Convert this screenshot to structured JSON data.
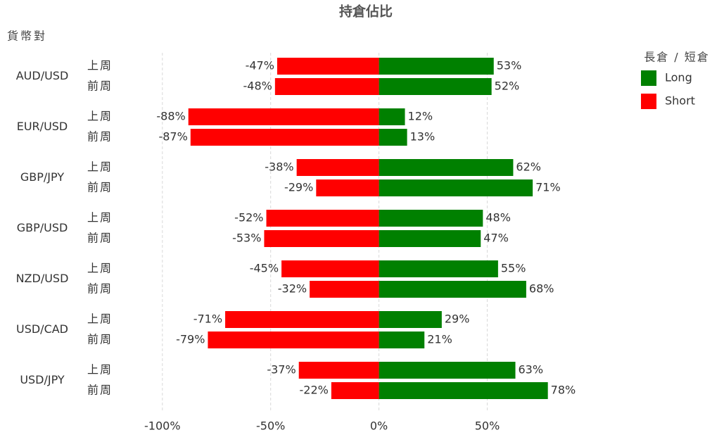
{
  "chart_data": {
    "type": "bar",
    "orientation": "horizontal",
    "title": "持倉佔比",
    "y_axis_label": "貨幣對",
    "legend_title": "長倉 / 短倉",
    "legend_position": "right",
    "groups": [
      "AUD/USD",
      "EUR/USD",
      "GBP/JPY",
      "GBP/USD",
      "NZD/USD",
      "USD/CAD",
      "USD/JPY"
    ],
    "categories": [
      "上周",
      "前周",
      "上周",
      "前周",
      "上周",
      "前周",
      "上周",
      "前周",
      "上周",
      "前周",
      "上周",
      "前周",
      "上周",
      "前周"
    ],
    "series": [
      {
        "name": "Long",
        "color": "#008000",
        "values": [
          53,
          52,
          12,
          13,
          62,
          71,
          48,
          47,
          55,
          68,
          29,
          21,
          63,
          78
        ],
        "value_labels": [
          "53%",
          "52%",
          "12%",
          "13%",
          "62%",
          "71%",
          "48%",
          "47%",
          "55%",
          "68%",
          "29%",
          "21%",
          "63%",
          "78%"
        ]
      },
      {
        "name": "Short",
        "color": "#ff0000",
        "values": [
          -47,
          -48,
          -88,
          -87,
          -38,
          -29,
          -52,
          -53,
          -45,
          -32,
          -71,
          -79,
          -37,
          -22
        ],
        "value_labels": [
          "-47%",
          "-48%",
          "-88%",
          "-87%",
          "-38%",
          "-29%",
          "-52%",
          "-53%",
          "-45%",
          "-32%",
          "-71%",
          "-79%",
          "-37%",
          "-22%"
        ]
      }
    ],
    "xlim": [
      -110,
      95
    ],
    "xticks": [
      {
        "value": -100,
        "label": "-100%"
      },
      {
        "value": -50,
        "label": "-50%"
      },
      {
        "value": 0,
        "label": "0%"
      },
      {
        "value": 50,
        "label": "50%"
      }
    ],
    "grid": true
  }
}
